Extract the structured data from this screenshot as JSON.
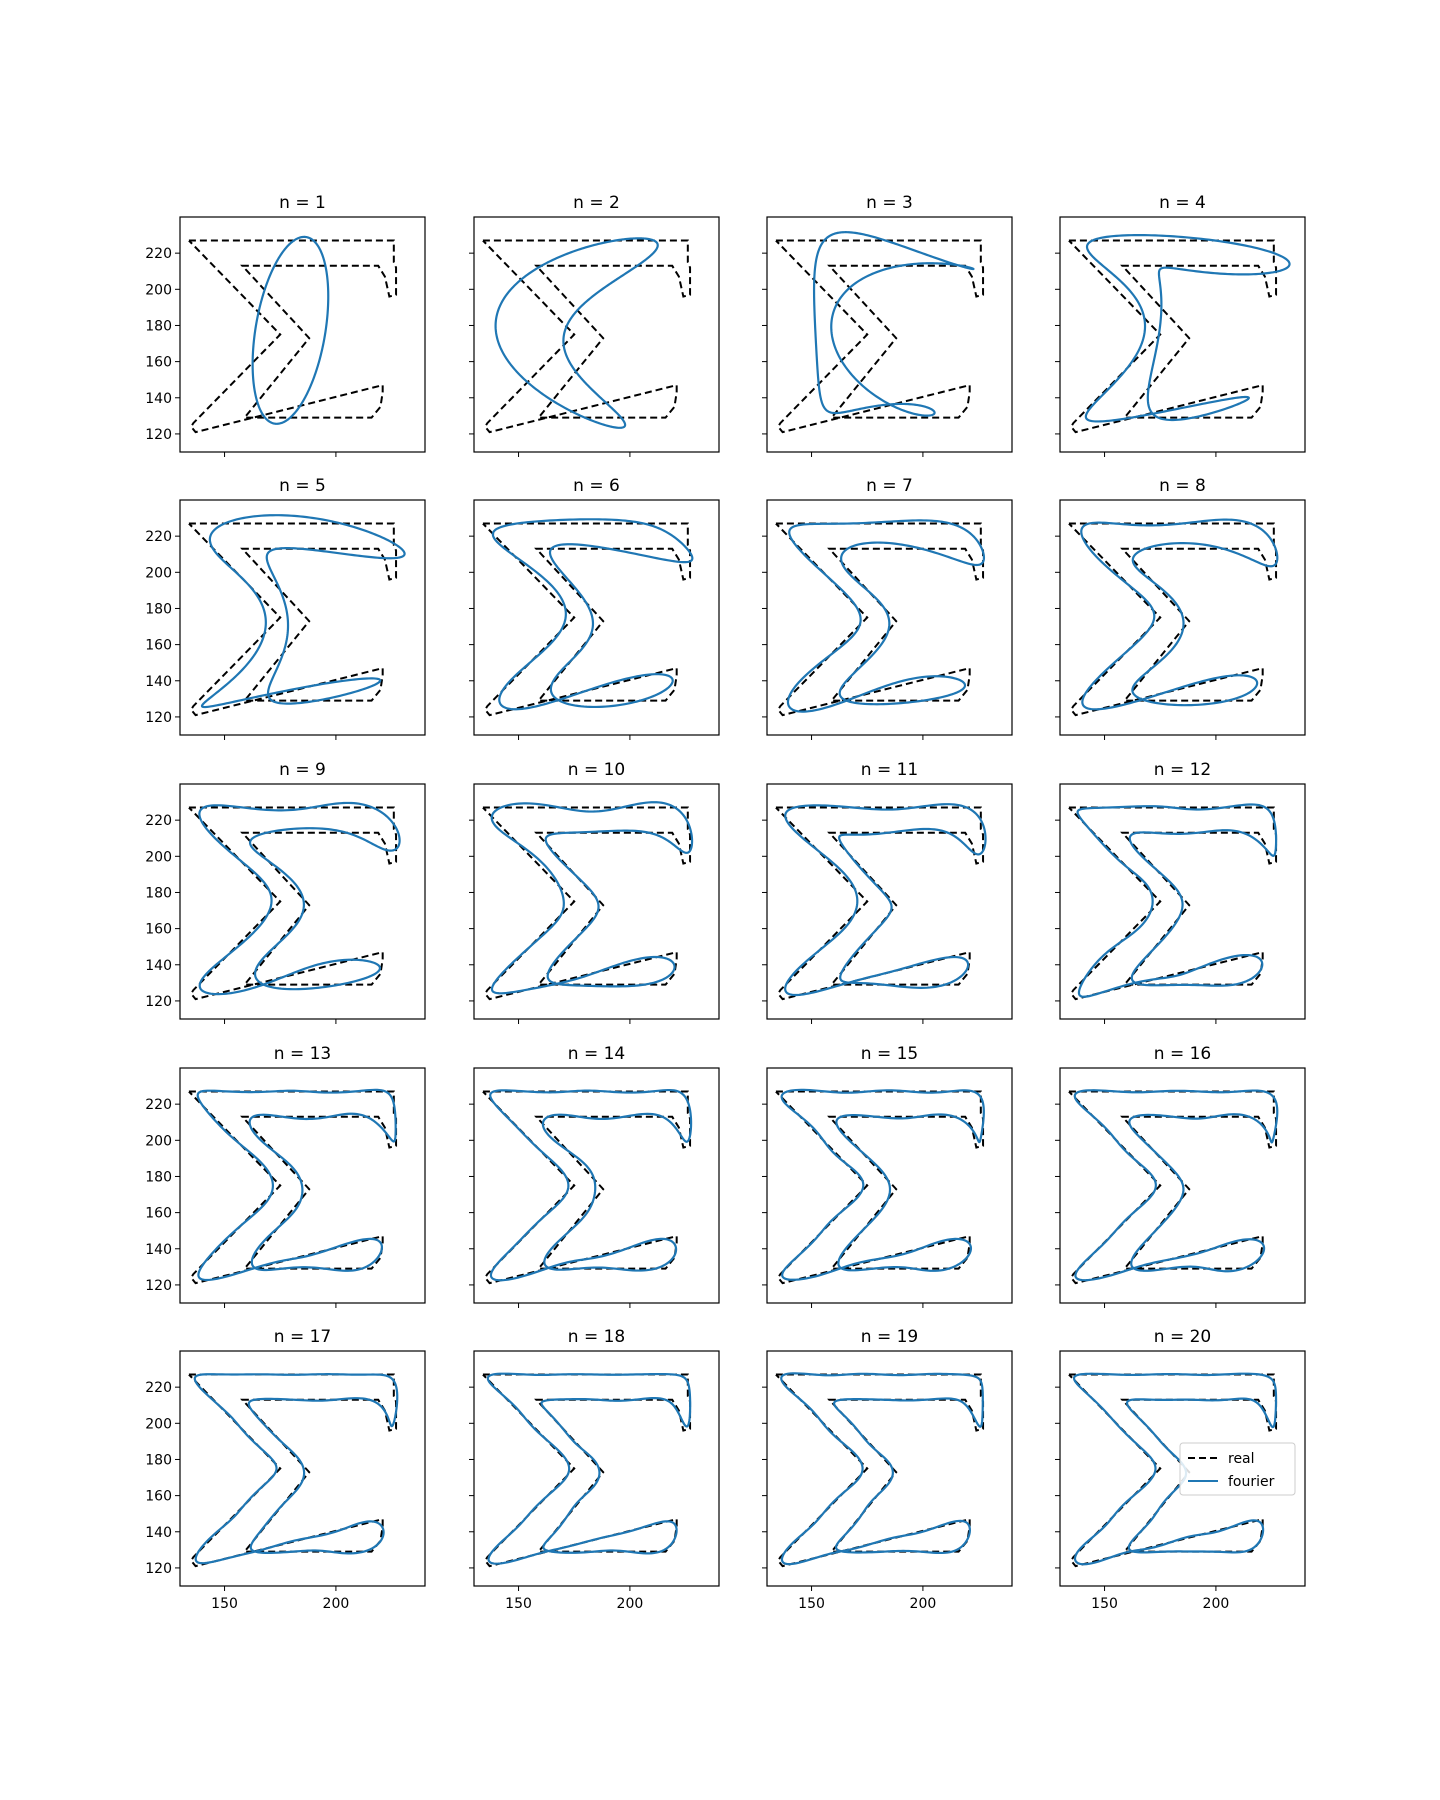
{
  "chart_data": {
    "type": "line",
    "layout": "grid 5 rows x 4 columns, shared axes",
    "subplot_titles": [
      "n = 1",
      "n = 2",
      "n = 3",
      "n = 4",
      "n = 5",
      "n = 6",
      "n = 7",
      "n = 8",
      "n = 9",
      "n = 10",
      "n = 11",
      "n = 12",
      "n = 13",
      "n = 14",
      "n = 15",
      "n = 16",
      "n = 17",
      "n = 18",
      "n = 19",
      "n = 20"
    ],
    "xlim": [
      130,
      240
    ],
    "ylim": [
      110,
      240
    ],
    "x_ticks": [
      150,
      200
    ],
    "x_tick_labels": [
      "150",
      "200"
    ],
    "y_ticks": [
      120,
      140,
      160,
      180,
      200,
      220
    ],
    "y_tick_labels": [
      "120",
      "140",
      "160",
      "180",
      "200",
      "220"
    ],
    "grid": false,
    "legend": {
      "location": "center-right of last subplot",
      "entries": [
        {
          "label": "real",
          "style": "dashed",
          "color": "#000000"
        },
        {
          "label": "fourier",
          "style": "solid",
          "color": "#1f77b4"
        }
      ]
    },
    "series": [
      {
        "name": "real",
        "color": "#000000",
        "style": "dashed",
        "x": [
          134,
          226,
          226,
          227,
          227,
          224,
          222,
          219,
          158,
          188,
          159,
          216,
          220,
          221,
          221,
          137,
          135,
          136,
          175,
          134
        ],
        "y": [
          227,
          227,
          215,
          212,
          197,
          196,
          207,
          213,
          213,
          173,
          129,
          129,
          135,
          143,
          147,
          121,
          124,
          126,
          175,
          227
        ]
      },
      {
        "name": "fourier",
        "color": "#1f77b4",
        "style": "solid",
        "description": "Fourier series approximation with n harmonics; converges toward the real sigma outline as n increases from 1 to 20"
      }
    ]
  }
}
